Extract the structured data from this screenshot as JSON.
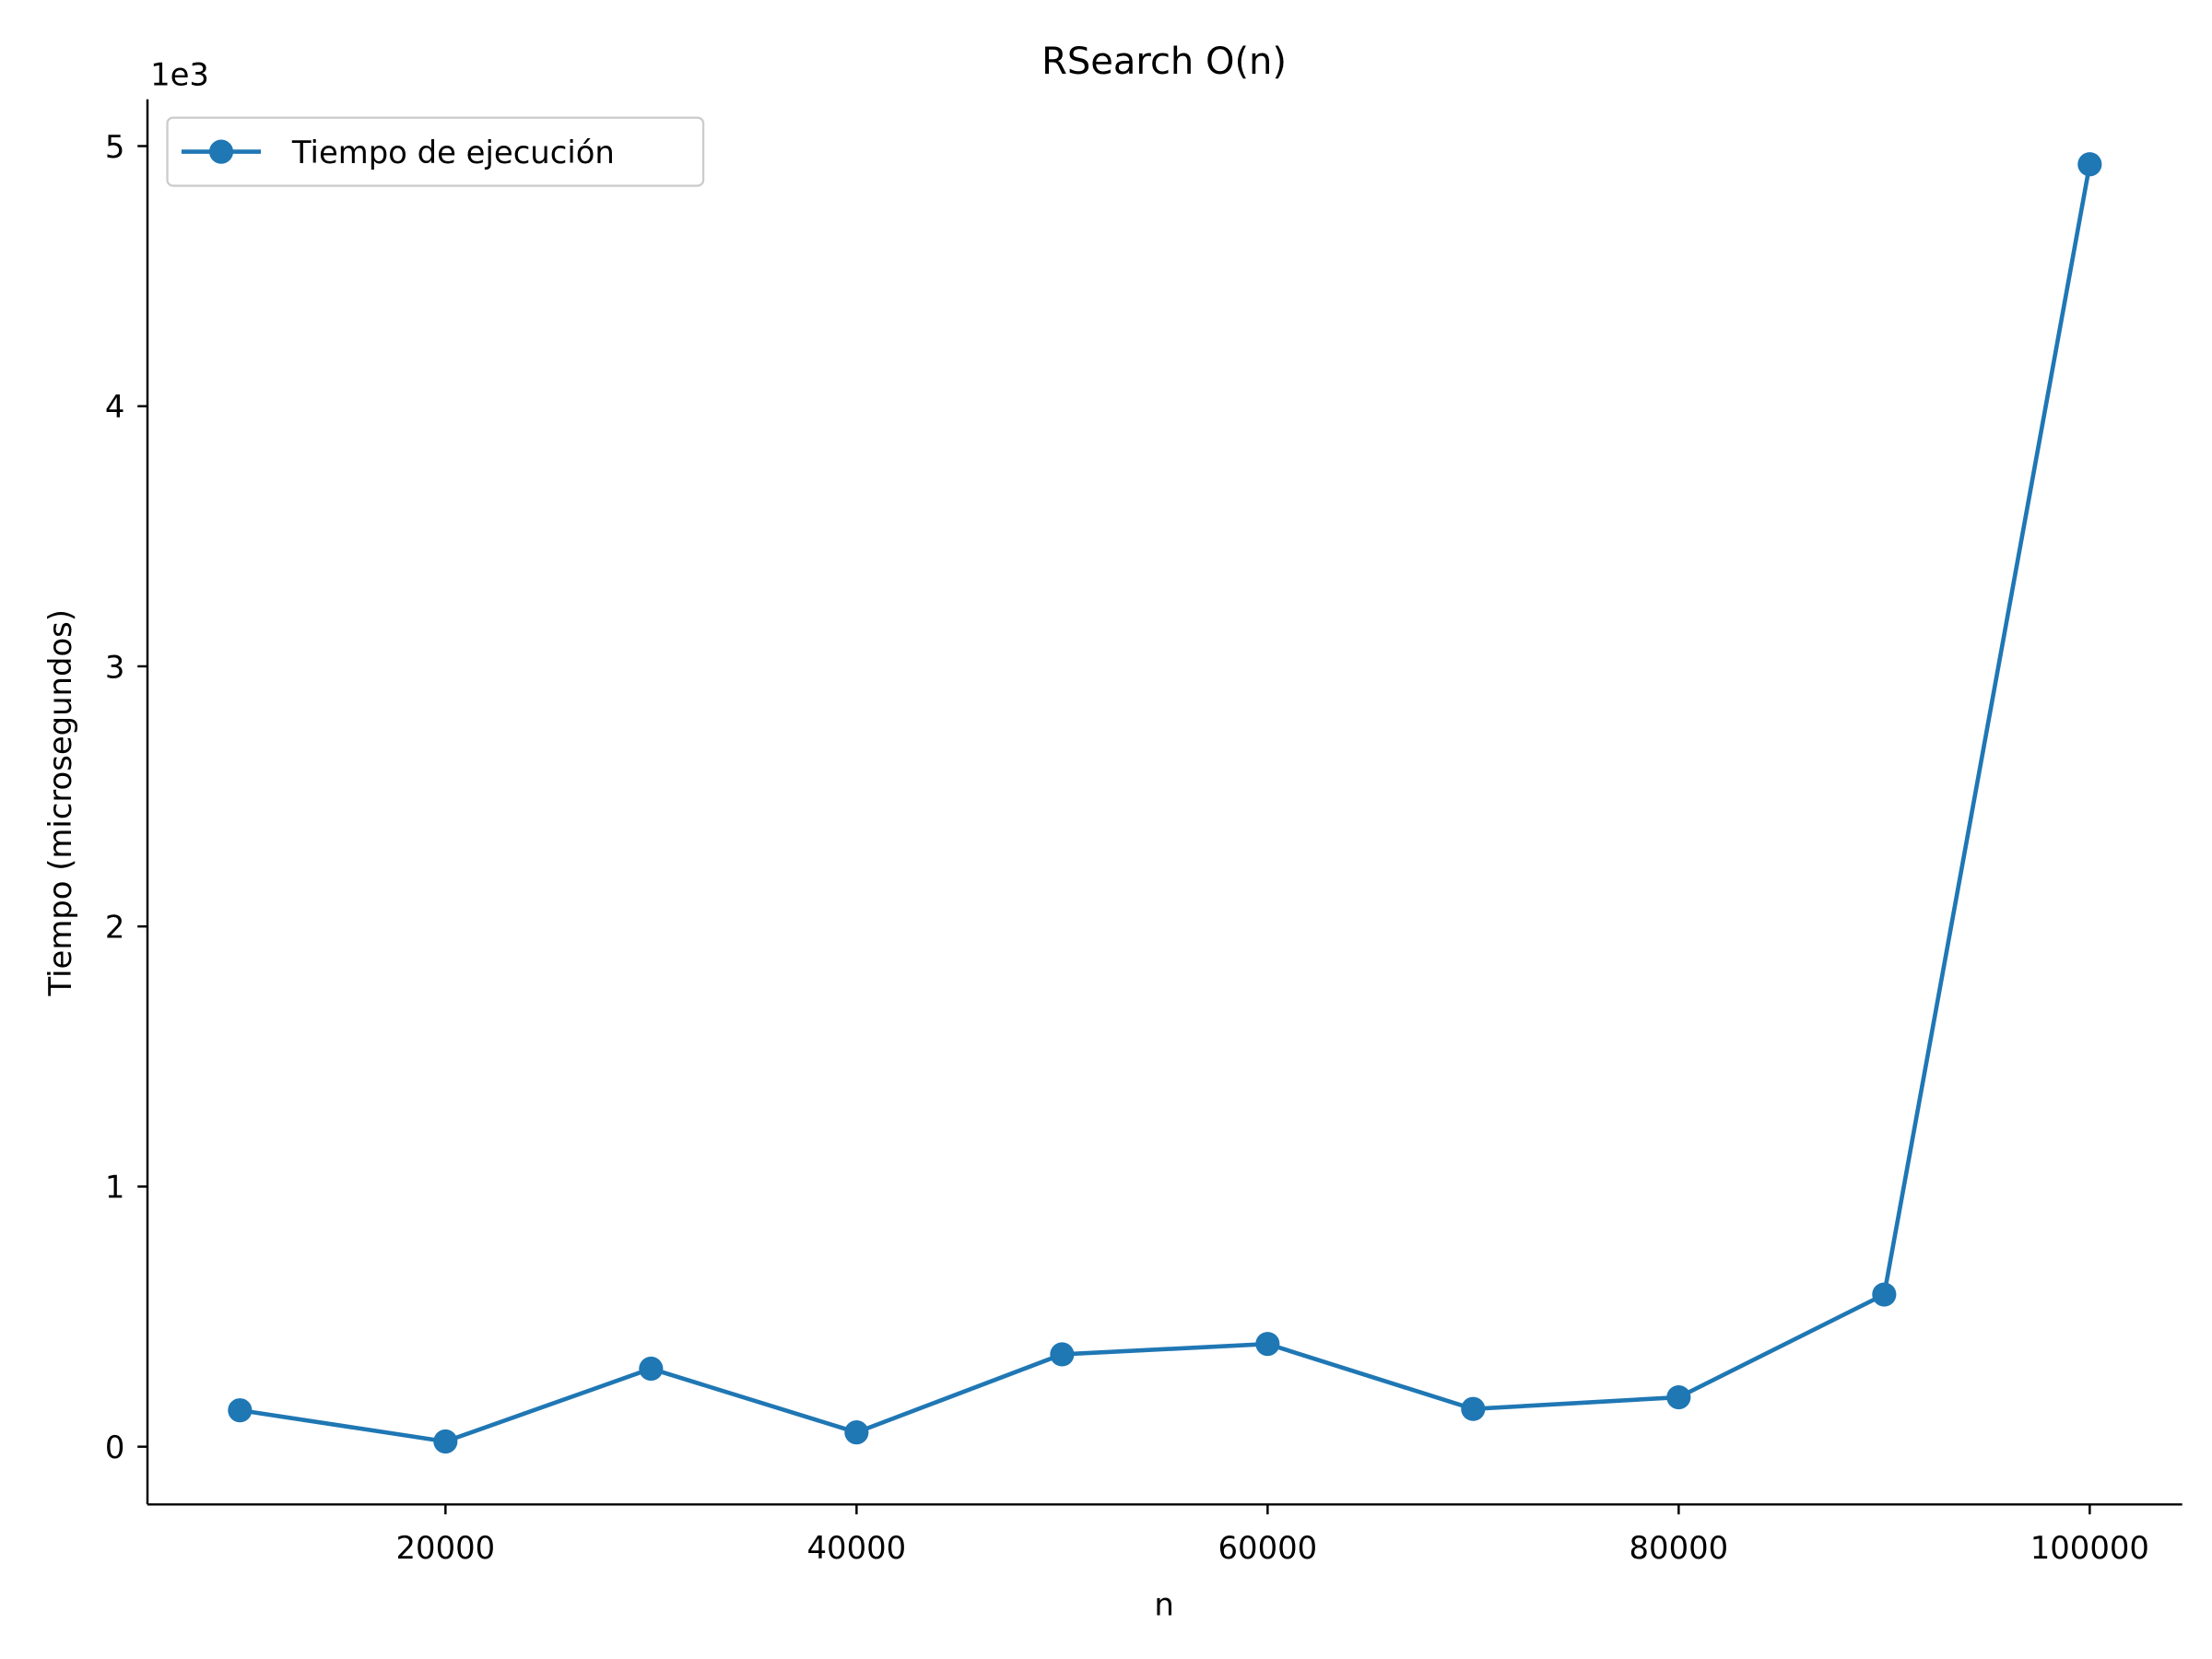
{
  "chart_data": {
    "type": "line",
    "title": "RSearch O(n)",
    "xlabel": "n",
    "ylabel": "Tiempo (microsegundos)",
    "y_offset_label": "1e3",
    "x": [
      10000,
      20000,
      30000,
      40000,
      50000,
      60000,
      70000,
      80000,
      90000,
      100000
    ],
    "series": [
      {
        "name": "Tiempo de ejecución",
        "values": [
          140,
          20,
          300,
          55,
          355,
          395,
          145,
          190,
          585,
          4930
        ],
        "color": "#1f77b4",
        "marker": "circle"
      }
    ],
    "xlim": [
      5500,
      104500
    ],
    "ylim": [
      -222,
      5180
    ],
    "x_ticks": [
      20000,
      40000,
      60000,
      80000,
      100000
    ],
    "x_tick_labels": [
      "20000",
      "40000",
      "60000",
      "80000",
      "100000"
    ],
    "y_ticks": [
      0,
      1000,
      2000,
      3000,
      4000,
      5000
    ],
    "y_tick_labels": [
      "0",
      "1",
      "2",
      "3",
      "4",
      "5"
    ],
    "grid": false,
    "legend_position": "top-left"
  }
}
